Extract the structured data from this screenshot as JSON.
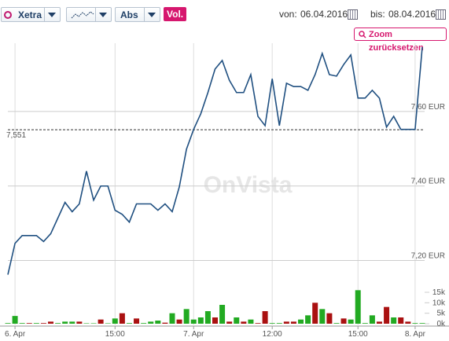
{
  "toolbar": {
    "exchange": "Xetra",
    "scale": "Abs",
    "volume_toggle": "Vol.",
    "from_label": "von:",
    "date_from": "06.04.2016",
    "to_label": "bis:",
    "date_to": "08.04.2016",
    "zoom_button": "Zoom zurücksetzen"
  },
  "chart_data": {
    "type": "line",
    "watermark": "OnVista",
    "color": "#1f4f80",
    "grid": true,
    "categories": [
      null,
      "6. Apr",
      null,
      null,
      null,
      null,
      null,
      null,
      null,
      null,
      null,
      null,
      null,
      null,
      null,
      "15:00",
      null,
      null,
      null,
      null,
      null,
      null,
      null,
      null,
      null,
      null,
      "7. Apr",
      null,
      null,
      null,
      null,
      null,
      null,
      null,
      null,
      null,
      null,
      "12:00",
      null,
      null,
      null,
      null,
      null,
      null,
      null,
      null,
      null,
      null,
      null,
      "15:00",
      null,
      null,
      null,
      null,
      null,
      null,
      null,
      "8. Apr",
      null
    ],
    "values": [
      7.162,
      7.246,
      7.267,
      7.267,
      7.267,
      7.251,
      7.272,
      7.314,
      7.356,
      7.331,
      7.352,
      7.44,
      7.362,
      7.4,
      7.4,
      7.335,
      7.324,
      7.303,
      7.352,
      7.352,
      7.352,
      7.335,
      7.352,
      7.331,
      7.398,
      7.499,
      7.552,
      7.594,
      7.651,
      7.714,
      7.737,
      7.684,
      7.651,
      7.651,
      7.699,
      7.587,
      7.562,
      7.688,
      7.562,
      7.676,
      7.667,
      7.667,
      7.657,
      7.699,
      7.756,
      7.699,
      7.695,
      7.726,
      7.752,
      7.636,
      7.636,
      7.657,
      7.636,
      7.558,
      7.587,
      7.552,
      7.552,
      7.552,
      7.773
    ],
    "ylim": [
      7.14,
      7.815
    ],
    "yticks": [
      {
        "value": 7.2,
        "label": "7,20 EUR"
      },
      {
        "value": 7.4,
        "label": "7,40 EUR"
      },
      {
        "value": 7.6,
        "label": "7,60 EUR"
      }
    ],
    "reference_line": {
      "value": 7.551,
      "label": "7,551",
      "color": "#333333"
    },
    "volume": {
      "values": [
        0.3,
        3.7,
        0.3,
        0.3,
        0.3,
        0.3,
        1,
        0.3,
        1,
        1,
        1,
        0.2,
        0.2,
        2,
        0.2,
        2.5,
        5,
        0.3,
        2.5,
        0.3,
        1,
        1.5,
        0.5,
        5,
        2,
        7,
        2,
        3,
        6,
        3,
        9,
        1,
        3,
        1,
        2,
        0.3,
        6,
        0.3,
        0.3,
        1,
        1,
        2,
        4,
        10,
        7,
        5,
        0.3,
        2.5,
        2,
        16,
        0.3,
        4,
        1,
        8,
        3,
        3,
        1,
        0.3,
        0.3
      ],
      "colors": [
        "#22aa22",
        "#22aa22",
        "#22aa22",
        "#aa1111",
        "#22aa22",
        "#aa1111",
        "#aa1111",
        "#22aa22",
        "#22aa22",
        "#22aa22",
        "#aa1111",
        "#22aa22",
        "#22aa22",
        "#aa1111",
        "#22aa22",
        "#22aa22",
        "#aa1111",
        "#22aa22",
        "#aa1111",
        "#22aa22",
        "#22aa22",
        "#22aa22",
        "#aa1111",
        "#22aa22",
        "#aa1111",
        "#22aa22",
        "#22aa22",
        "#22aa22",
        "#22aa22",
        "#aa1111",
        "#22aa22",
        "#aa1111",
        "#22aa22",
        "#aa1111",
        "#22aa22",
        "#aa1111",
        "#aa1111",
        "#22aa22",
        "#22aa22",
        "#aa1111",
        "#aa1111",
        "#22aa22",
        "#22aa22",
        "#aa1111",
        "#22aa22",
        "#aa1111",
        "#22aa22",
        "#aa1111",
        "#22aa22",
        "#22aa22",
        "#22aa22",
        "#22aa22",
        "#aa1111",
        "#aa1111",
        "#22aa22",
        "#aa1111",
        "#aa1111",
        "#22aa22",
        "#22aa22"
      ],
      "ylim": [
        0,
        15
      ],
      "yticks": [
        {
          "value": 0,
          "label": "0k"
        },
        {
          "value": 5,
          "label": "5k"
        },
        {
          "value": 10,
          "label": "10k"
        },
        {
          "value": 15,
          "label": "15k"
        }
      ]
    }
  }
}
